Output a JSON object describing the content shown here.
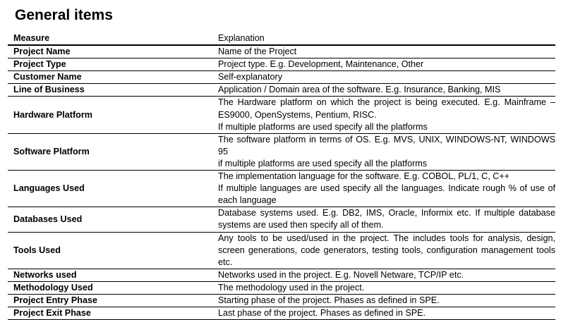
{
  "title": "General items",
  "table": {
    "header": {
      "measure": "Measure",
      "explanation": "Explanation"
    },
    "rows": [
      {
        "measure": "Project Name",
        "lines": [
          "Name of the Project"
        ]
      },
      {
        "measure": "Project Type",
        "lines": [
          "Project type. E.g. Development, Maintenance, Other"
        ]
      },
      {
        "measure": "Customer Name",
        "lines": [
          "Self-explanatory"
        ]
      },
      {
        "measure": "Line of Business",
        "lines": [
          "Application / Domain area of the software. E.g. Insurance, Banking, MIS"
        ]
      },
      {
        "measure": "Hardware Platform",
        "lines": [
          "The Hardware platform on which the project is being executed. E.g. Mainframe – ES9000, OpenSystems, Pentium, RISC.",
          "If multiple platforms are used specify all the platforms"
        ]
      },
      {
        "measure": "Software Platform",
        "lines": [
          "The software platform in terms of OS. E.g. MVS, UNIX, WINDOWS-NT, WINDOWS 95",
          "if multiple platforms are used specify all the platforms"
        ]
      },
      {
        "measure": "Languages Used",
        "lines": [
          "The implementation language for the software. E.g. COBOL, PL/1, C, C++",
          "If multiple languages are used specify all the languages. Indicate rough % of use of each language"
        ]
      },
      {
        "measure": "Databases Used",
        "lines": [
          "Database systems used. E.g. DB2, IMS, Oracle, Informix etc. If multiple database systems are used then specify all of them."
        ]
      },
      {
        "measure": "Tools Used",
        "lines": [
          "Any tools to be used/used in the project. The includes tools for analysis, design, screen generations, code generators, testing tools, configuration management tools etc."
        ]
      },
      {
        "measure": "Networks used",
        "lines": [
          "Networks used in the project. E.g. Novell Netware, TCP/IP etc."
        ]
      },
      {
        "measure": "Methodology Used",
        "lines": [
          "The methodology used in the project."
        ]
      },
      {
        "measure": "Project Entry Phase",
        "lines": [
          "Starting phase of the project. Phases as defined in SPE."
        ]
      },
      {
        "measure": "Project Exit Phase",
        "lines": [
          "Last phase of the project. Phases as defined in SPE."
        ]
      }
    ]
  }
}
